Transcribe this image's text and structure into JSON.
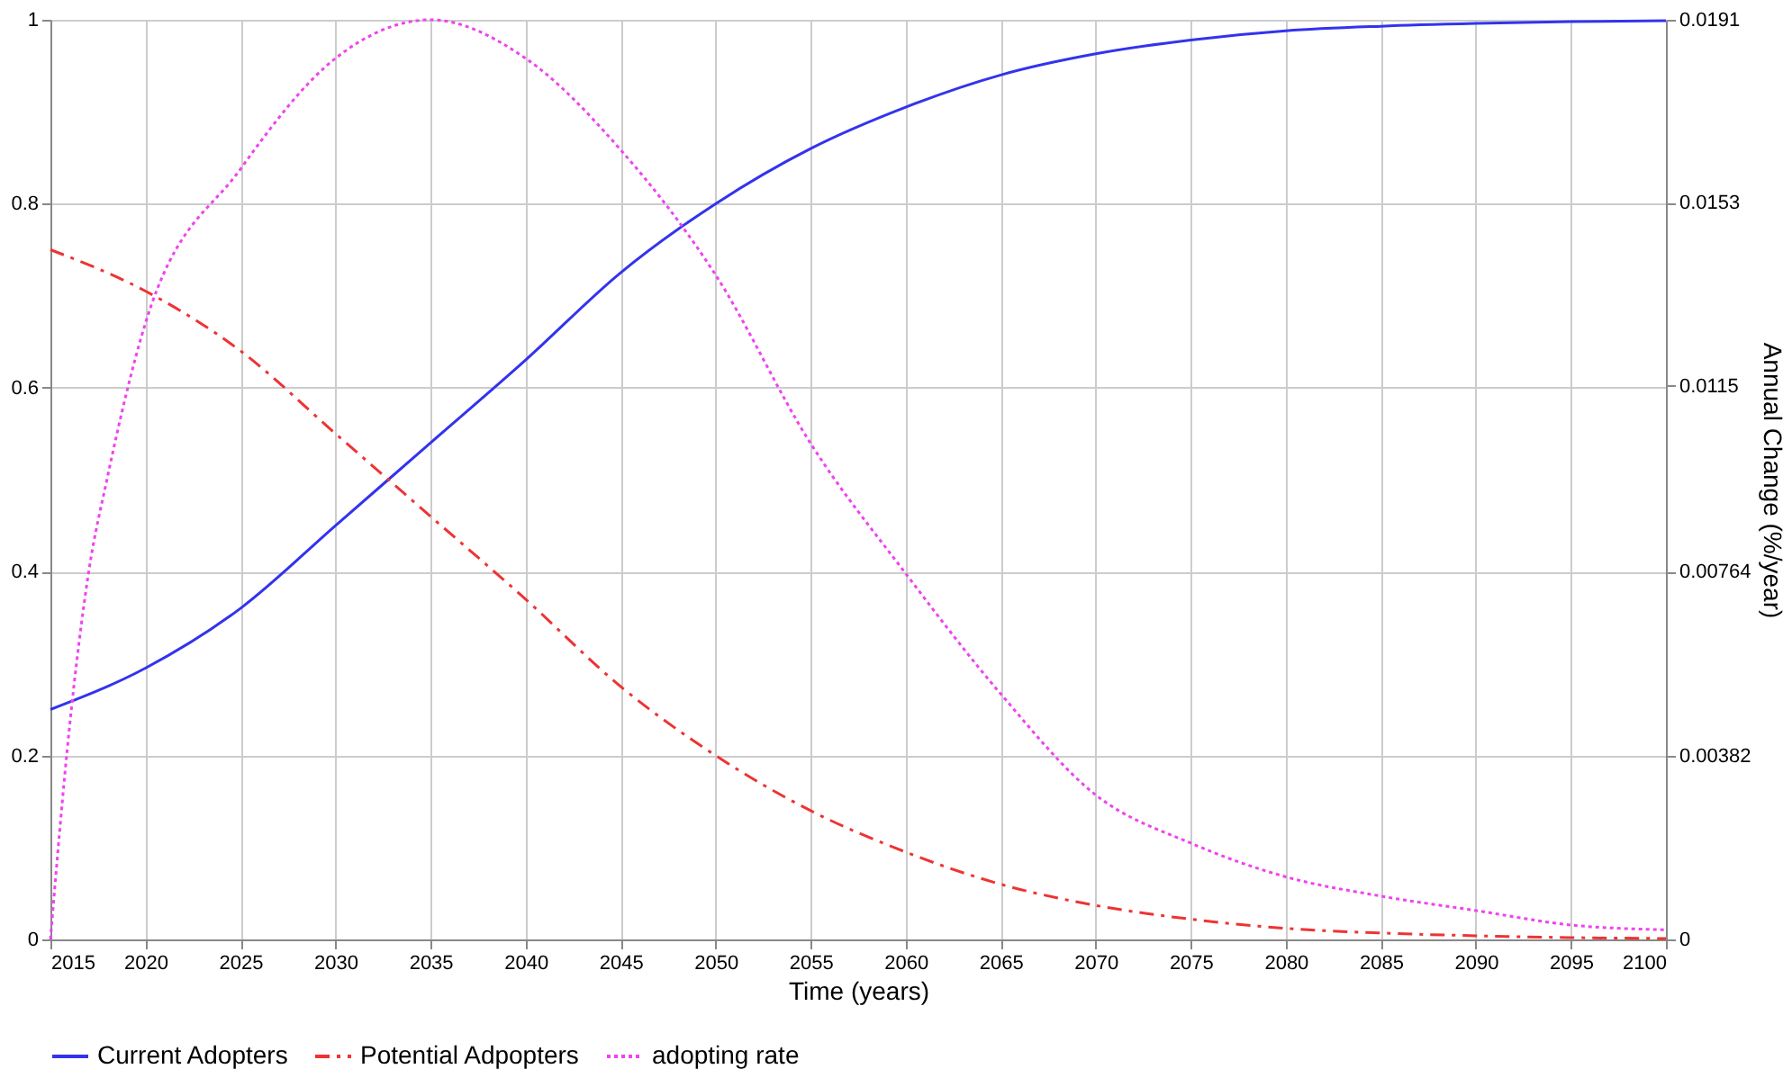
{
  "chart_data": {
    "type": "line",
    "xlabel": "Time (years)",
    "y2label": "Annual Change (%/year)",
    "xlim": [
      2015,
      2100
    ],
    "xticks": [
      2015,
      2020,
      2025,
      2030,
      2035,
      2040,
      2045,
      2050,
      2055,
      2060,
      2065,
      2070,
      2075,
      2080,
      2085,
      2090,
      2095,
      2100
    ],
    "ylim": [
      0,
      1
    ],
    "yticks": [
      0,
      0.2,
      0.4,
      0.6,
      0.8,
      1
    ],
    "y2lim": [
      0,
      0.0191
    ],
    "y2ticks": [
      0,
      0.00382,
      0.00764,
      0.0115,
      0.0153,
      0.0191
    ],
    "grid": true,
    "legend": "bottom",
    "series": [
      {
        "name": "Current Adopters",
        "color": "#3333ee",
        "line_style": "solid",
        "x": [
          2015,
          2020,
          2025,
          2030,
          2035,
          2040,
          2045,
          2050,
          2055,
          2060,
          2065,
          2070,
          2075,
          2080,
          2085,
          2090,
          2095,
          2100
        ],
        "values": [
          0.25,
          0.295,
          0.36,
          0.45,
          0.54,
          0.63,
          0.725,
          0.8,
          0.86,
          0.905,
          0.94,
          0.963,
          0.978,
          0.988,
          0.993,
          0.996,
          0.998,
          0.999
        ]
      },
      {
        "name": "Potential Adpopters",
        "color": "#ee3333",
        "line_style": "dashed",
        "x": [
          2015,
          2020,
          2025,
          2030,
          2035,
          2040,
          2045,
          2050,
          2055,
          2060,
          2065,
          2070,
          2075,
          2080,
          2085,
          2090,
          2095,
          2100
        ],
        "values": [
          0.75,
          0.705,
          0.64,
          0.55,
          0.46,
          0.37,
          0.275,
          0.2,
          0.14,
          0.095,
          0.06,
          0.037,
          0.022,
          0.012,
          0.007,
          0.004,
          0.002,
          0.001
        ]
      },
      {
        "name": "adopting rate",
        "color": "#ee44ee",
        "line_style": "dotted",
        "axis": "y2",
        "x": [
          2015,
          2016,
          2017,
          2018,
          2020,
          2025,
          2030,
          2035,
          2040,
          2045,
          2050,
          2055,
          2060,
          2065,
          2070,
          2075,
          2080,
          2085,
          2090,
          2095,
          2100
        ],
        "values": [
          0,
          0.0044,
          0.0076,
          0.0096,
          0.0128,
          0.016,
          0.0183,
          0.0191,
          0.0183,
          0.0164,
          0.0138,
          0.0103,
          0.0076,
          0.0051,
          0.003,
          0.002,
          0.0013,
          0.0009,
          0.0006,
          0.0003,
          0.0002
        ]
      }
    ]
  }
}
